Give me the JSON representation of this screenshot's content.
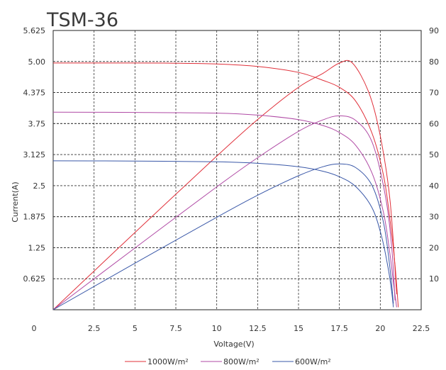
{
  "chart_data": {
    "type": "line",
    "title": "TSM-36",
    "xlabel": "Voltage(V)",
    "ylabel": "Current(A)",
    "xlim": [
      0,
      22.5
    ],
    "ylim": [
      0,
      5.625
    ],
    "y2lim": [
      0,
      90
    ],
    "x_ticks": [
      "0",
      "2.5",
      "5",
      "7.5",
      "10",
      "12.5",
      "15",
      "17.5",
      "20",
      "22.5"
    ],
    "y_ticks": [
      "0.625",
      "1.25",
      "1.875",
      "2.5",
      "3.125",
      "3.75",
      "4.375",
      "5.00",
      "5.625"
    ],
    "y2_ticks": [
      "10",
      "20",
      "30",
      "40",
      "50",
      "60",
      "70",
      "80",
      "90"
    ],
    "grid": true,
    "legend_position": "bottom-center",
    "series": [
      {
        "name": "1000W/m²",
        "color": "#e0303a",
        "iv": {
          "x": [
            0,
            5,
            7.5,
            10,
            12.5,
            15,
            16.5,
            17.5,
            18.5,
            19.5,
            20.2,
            20.6,
            20.9,
            21.1
          ],
          "y": [
            4.97,
            4.97,
            4.965,
            4.95,
            4.9,
            4.78,
            4.62,
            4.48,
            4.2,
            3.55,
            2.7,
            1.8,
            0.9,
            0.05
          ]
        },
        "power": {
          "x": [
            0,
            5,
            10,
            12.5,
            15,
            16.5,
            17.5,
            18.3,
            19.3,
            20.0,
            20.6,
            21.0
          ],
          "y": [
            0,
            24.9,
            49.5,
            61.3,
            71.7,
            76.2,
            79.5,
            79.5,
            70,
            56,
            35,
            5
          ]
        }
      },
      {
        "name": "800W/m²",
        "color": "#b04aa5",
        "iv": {
          "x": [
            0,
            5,
            10,
            12.5,
            15,
            16.5,
            17.5,
            18.5,
            19.5,
            20.2,
            20.6,
            20.8,
            21.0
          ],
          "y": [
            3.98,
            3.975,
            3.96,
            3.92,
            3.83,
            3.71,
            3.57,
            3.31,
            2.75,
            1.95,
            1.1,
            0.55,
            0.05
          ]
        },
        "power": {
          "x": [
            0,
            5,
            10,
            12.5,
            15,
            16.5,
            17.5,
            18.5,
            19.5,
            20.3,
            20.7,
            20.9
          ],
          "y": [
            0,
            19.9,
            39.6,
            49,
            57.5,
            61.2,
            62.5,
            61,
            54,
            37,
            20,
            3
          ]
        }
      },
      {
        "name": "600W/m²",
        "color": "#3a58a8",
        "iv": {
          "x": [
            0,
            5,
            10,
            12.5,
            15,
            16.5,
            17.5,
            18.5,
            19.5,
            20.1,
            20.5,
            20.7,
            20.8
          ],
          "y": [
            3.0,
            2.995,
            2.98,
            2.95,
            2.88,
            2.79,
            2.68,
            2.48,
            2.05,
            1.45,
            0.8,
            0.35,
            0.05
          ]
        },
        "power": {
          "x": [
            0,
            5,
            10,
            12.5,
            15,
            16.5,
            17.5,
            18.5,
            19.5,
            20.2,
            20.6,
            20.8
          ],
          "y": [
            0,
            15,
            29.8,
            36.9,
            43.2,
            46.1,
            47,
            45.8,
            40,
            28,
            13,
            2
          ]
        }
      }
    ]
  }
}
